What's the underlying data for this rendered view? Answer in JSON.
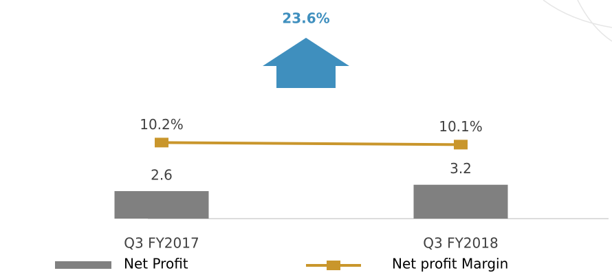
{
  "chart_data": {
    "type": "bar_line",
    "annotation": "23.6%",
    "categories": [
      "Q3 FY2017",
      "Q3 FY2018"
    ],
    "series": [
      {
        "name": "Net Profit",
        "type": "bar",
        "color": "#808080",
        "values": [
          2.6,
          3.2
        ]
      },
      {
        "name": "Net profit Margin",
        "type": "line",
        "axis": "y2",
        "color": "#c9962c",
        "values": [
          10.2,
          10.1
        ],
        "value_labels": [
          "10.2%",
          "10.1%"
        ]
      }
    ],
    "ylim": [
      0,
      20
    ],
    "y2lim": [
      6.5,
      16.8
    ],
    "grid": false,
    "annotation_color": "#3f8fbe"
  }
}
